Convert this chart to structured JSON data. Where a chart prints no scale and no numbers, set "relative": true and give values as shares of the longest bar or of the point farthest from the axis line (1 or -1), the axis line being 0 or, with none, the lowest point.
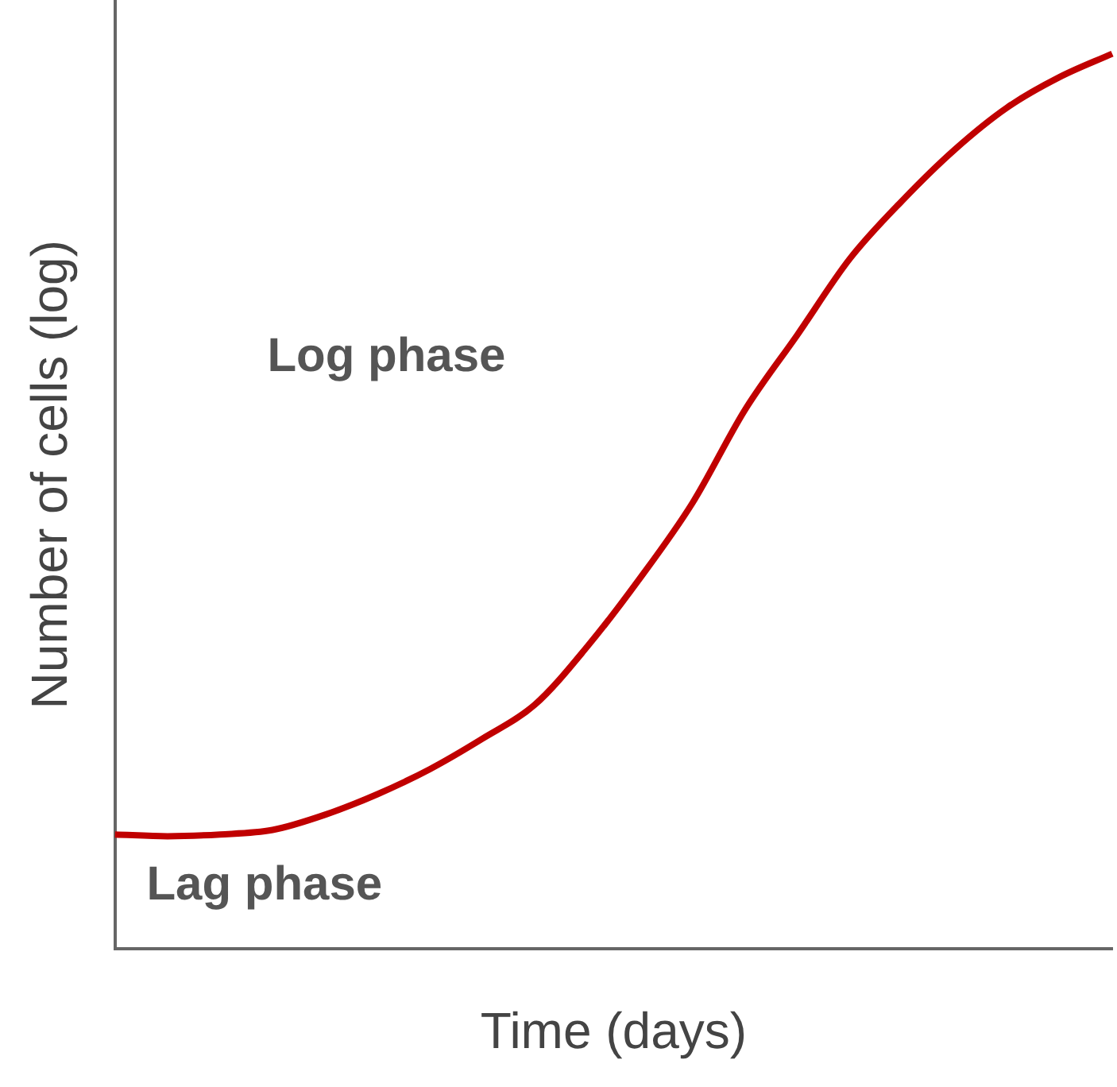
{
  "chart_data": {
    "type": "line",
    "relative": true,
    "xlabel": "Time (days)",
    "ylabel": "Number of cells (log)",
    "annotations": [
      "Log phase",
      "Lag phase"
    ],
    "categories": [
      null,
      null,
      null,
      null,
      null,
      null,
      null,
      null,
      null,
      null,
      null,
      null,
      null,
      null,
      null,
      null,
      null,
      null,
      null,
      null
    ],
    "series": [
      {
        "color": "#c00000",
        "values": [
          0.128,
          0.126,
          0.128,
          0.133,
          0.15,
          0.173,
          0.201,
          0.235,
          0.273,
          0.338,
          0.414,
          0.498,
          0.602,
          0.686,
          0.771,
          0.836,
          0.893,
          0.94,
          0.974,
          1
        ]
      }
    ],
    "grid": false,
    "legend": false,
    "marker": "none",
    "line_style": "solid"
  }
}
